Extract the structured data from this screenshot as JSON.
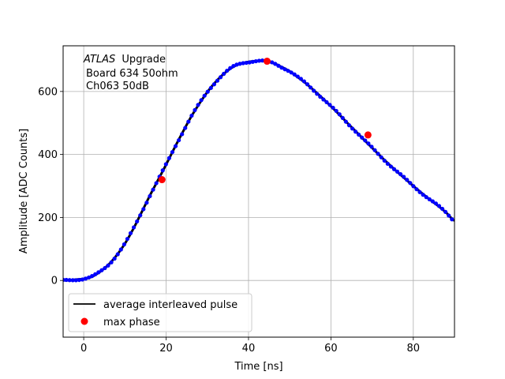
{
  "chart_data": {
    "type": "scatter",
    "xlabel": "Time [ns]",
    "ylabel": "Amplitude [ADC Counts]",
    "xlim": [
      -5,
      90
    ],
    "ylim": [
      -180,
      745
    ],
    "grid": true,
    "x_ticks": [
      0,
      20,
      40,
      60,
      80
    ],
    "y_ticks": [
      0,
      200,
      400,
      600
    ],
    "annotation": {
      "atlas": "ATLAS",
      "line1_rest": "Upgrade",
      "line2": "Board 634 50ohm",
      "line3": "Ch063 50dB"
    },
    "legend": {
      "placement": "lower-left",
      "entries": [
        {
          "label": "average interleaved pulse",
          "marker": "line",
          "color": "#000000"
        },
        {
          "label": "max phase",
          "marker": "dot",
          "color": "#ff0000"
        }
      ]
    },
    "series": [
      {
        "name": "average interleaved pulse",
        "style": "line+dots",
        "line_color": "#000000",
        "dot_color": "#0000ff",
        "x": [
          -5,
          0,
          2,
          4,
          6,
          8,
          10,
          12,
          14,
          16,
          18,
          20,
          22,
          24,
          26,
          28,
          30,
          32,
          34,
          36,
          38,
          40,
          42,
          44,
          46,
          48,
          50,
          52,
          54,
          56,
          58,
          60,
          62,
          64,
          66,
          68,
          70,
          72,
          74,
          76,
          78,
          80,
          82,
          84,
          86,
          88,
          90
        ],
        "y": [
          0,
          5,
          12,
          28,
          50,
          80,
          117,
          163,
          215,
          268,
          318,
          368,
          420,
          470,
          518,
          560,
          598,
          630,
          656,
          676,
          688,
          694,
          697,
          696,
          690,
          678,
          664,
          645,
          625,
          602,
          578,
          553,
          527,
          500,
          474,
          447,
          421,
          395,
          370,
          346,
          323,
          300,
          278,
          257,
          237,
          215,
          190
        ]
      },
      {
        "name": "max phase",
        "style": "dots",
        "color": "#ff0000",
        "x": [
          19,
          44.5,
          69
        ],
        "y": [
          320,
          696,
          462
        ]
      }
    ]
  }
}
